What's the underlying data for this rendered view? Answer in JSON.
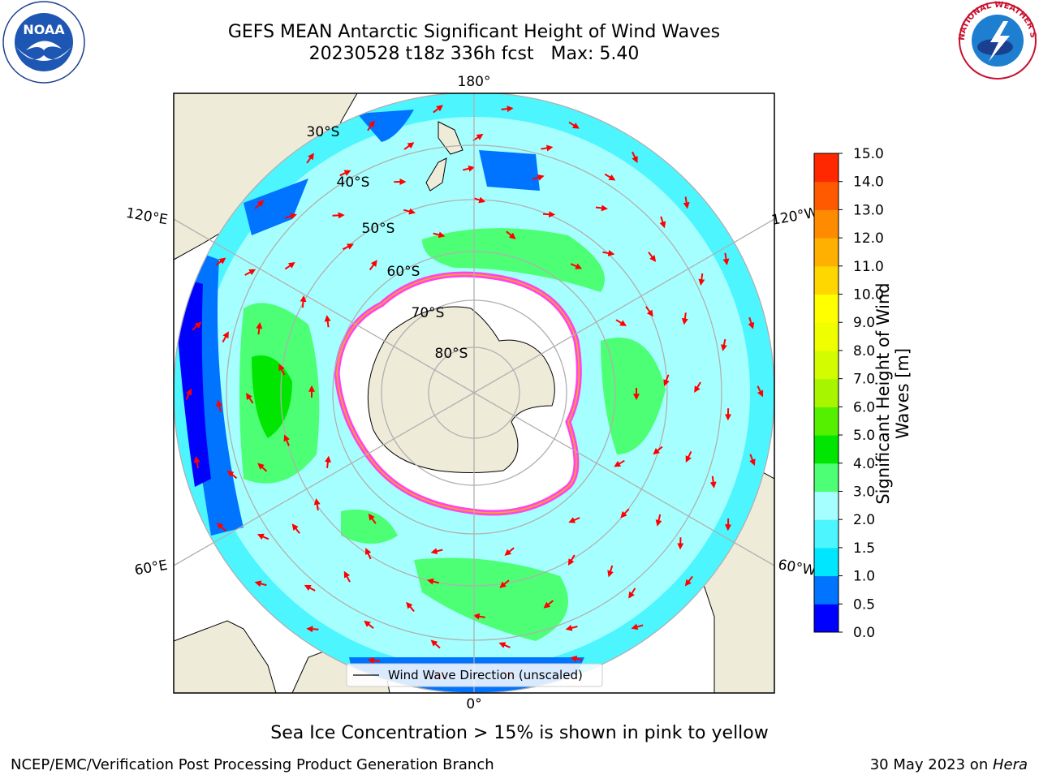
{
  "title": {
    "line1": "GEFS MEAN Antarctic Significant Height of Wind Waves",
    "line2": "20230528 t18z 336h fcst   Max: 5.40"
  },
  "map": {
    "projection": "south-polar-stereographic",
    "meridian_labels": [
      {
        "text": "180°"
      },
      {
        "text": "120°E"
      },
      {
        "text": "120°W"
      },
      {
        "text": "60°E"
      },
      {
        "text": "60°W"
      },
      {
        "text": "0°"
      }
    ],
    "parallel_labels": [
      {
        "text": "30°S"
      },
      {
        "text": "40°S"
      },
      {
        "text": "50°S"
      },
      {
        "text": "60°S"
      },
      {
        "text": "70°S"
      },
      {
        "text": "80°S"
      }
    ],
    "legend": {
      "label": "Wind Wave Direction (unscaled)"
    },
    "colors": {
      "land": "#efebd9",
      "ice": "#ffffff",
      "ice_edge": "#ff44ee",
      "arrow": "#ff0000",
      "grid": "#b0b0b0"
    }
  },
  "colorbar": {
    "title_line1": "Significant Height of Wind",
    "title_line2": "Waves [m]",
    "ticks": [
      "0.0",
      "0.5",
      "1.0",
      "1.5",
      "2.0",
      "3.0",
      "4.0",
      "5.0",
      "6.0",
      "7.0",
      "8.0",
      "9.0",
      "10.0",
      "11.0",
      "12.0",
      "13.0",
      "14.0",
      "15.0"
    ],
    "colors": [
      "#0000ff",
      "#0073ff",
      "#00e6ff",
      "#4df5ff",
      "#a6ffff",
      "#4dff74",
      "#00e600",
      "#55f000",
      "#a8f500",
      "#d4fc00",
      "#f0ff00",
      "#ffff00",
      "#ffd700",
      "#ffb000",
      "#ff8c00",
      "#ff5a00",
      "#ff2800"
    ]
  },
  "footer": {
    "note": "Sea Ice Concentration > 15% is shown in pink to yellow",
    "left": "NCEP/EMC/Verification Post Processing Product Generation Branch",
    "date": "30 May 2023 on ",
    "machine": "Hera"
  },
  "logos": {
    "noaa_text": "NOAA",
    "nws_text": "NATIONAL WEATHER SERVICE"
  }
}
